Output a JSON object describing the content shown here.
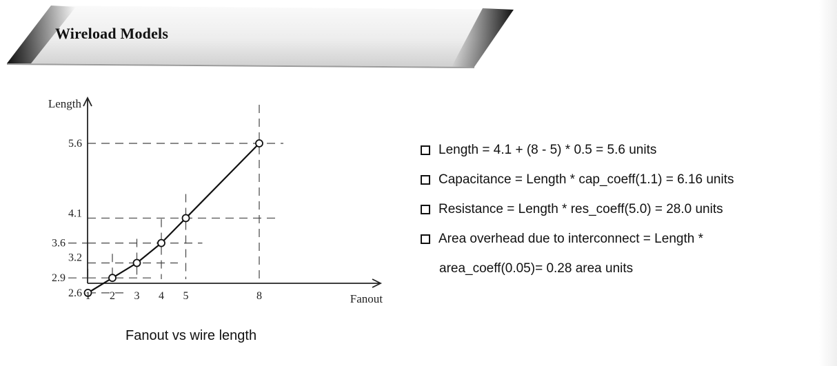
{
  "header": {
    "title": "Wireload Models"
  },
  "chart_caption": "Fanout vs wire length",
  "chart_data": {
    "type": "line",
    "xlabel": "Fanout",
    "ylabel": "Length",
    "x": [
      1,
      2,
      3,
      4,
      5,
      8
    ],
    "y": [
      2.6,
      2.9,
      3.2,
      3.6,
      4.1,
      5.6
    ],
    "x_ticks": [
      "1",
      "2",
      "3",
      "4",
      "5",
      "8"
    ],
    "y_ticks": [
      "2.6",
      "2.9",
      "3.2",
      "3.6",
      "4.1",
      "5.6"
    ],
    "markers": "open-circle",
    "grid": "dashed guides from each point to both axes"
  },
  "notes": [
    {
      "lines": [
        "Length = 4.1 + (8 - 5) * 0.5 = 5.6 units"
      ]
    },
    {
      "lines": [
        "Capacitance = Length * cap_coeff(1.1) = 6.16 units"
      ]
    },
    {
      "lines": [
        "Resistance = Length * res_coeff(5.0) = 28.0 units"
      ]
    },
    {
      "lines": [
        "Area overhead due to interconnect = Length *",
        "area_coeff(0.05)= 0.28 area units"
      ]
    }
  ],
  "icons": {
    "bullet": "square-bullet-icon"
  }
}
